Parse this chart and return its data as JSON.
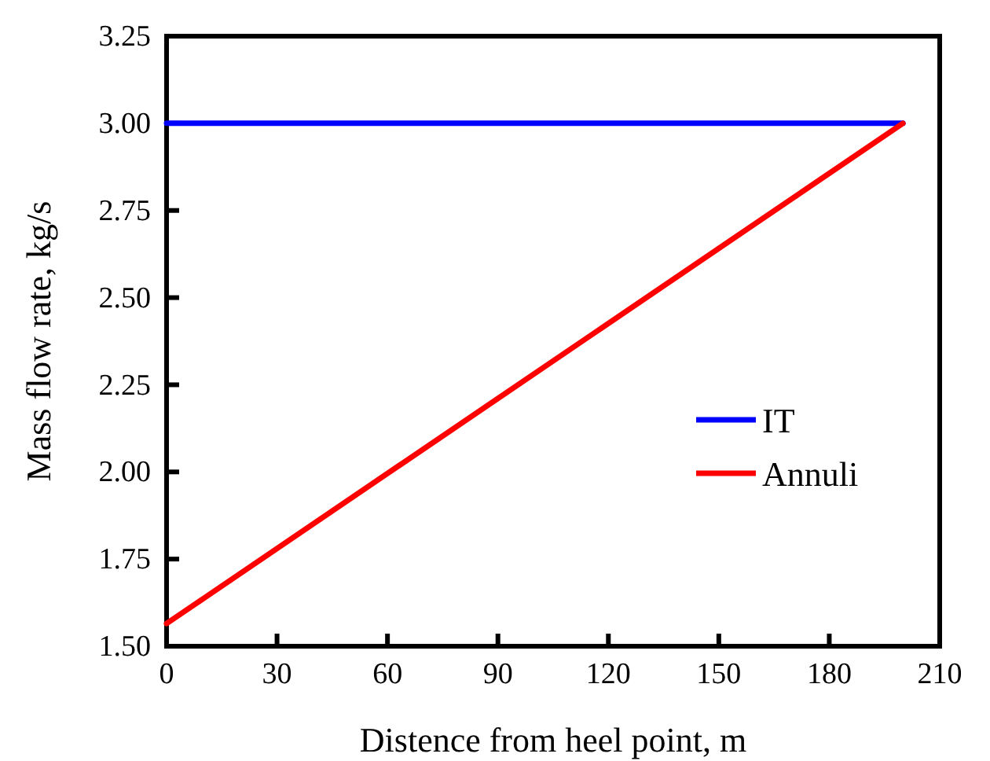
{
  "chart_data": {
    "type": "line",
    "xlabel": "Distence from heel point, m",
    "ylabel": "Mass flow rate, kg/s",
    "xlim": [
      0,
      210
    ],
    "xticks": [
      0,
      30,
      60,
      90,
      120,
      150,
      180,
      210
    ],
    "ylim": [
      1.5,
      3.25
    ],
    "yticks": [
      {
        "value": 1.5,
        "label": "1.50"
      },
      {
        "value": 1.75,
        "label": "1.75"
      },
      {
        "value": 2.0,
        "label": "2.00"
      },
      {
        "value": 2.25,
        "label": "2.25"
      },
      {
        "value": 2.5,
        "label": "2.50"
      },
      {
        "value": 2.75,
        "label": "2.75"
      },
      {
        "value": 3.0,
        "label": "3.00"
      },
      {
        "value": 3.25,
        "label": "3.25"
      }
    ],
    "grid": false,
    "legend": "right",
    "marker": "none",
    "line_style": "solid",
    "x": [
      0,
      200
    ],
    "series": [
      {
        "name": "IT",
        "color": "#0000ff",
        "values": [
          3.0,
          3.0
        ]
      },
      {
        "name": "Annuli",
        "color": "#ff0000",
        "values": [
          1.565,
          3.0
        ]
      }
    ]
  }
}
